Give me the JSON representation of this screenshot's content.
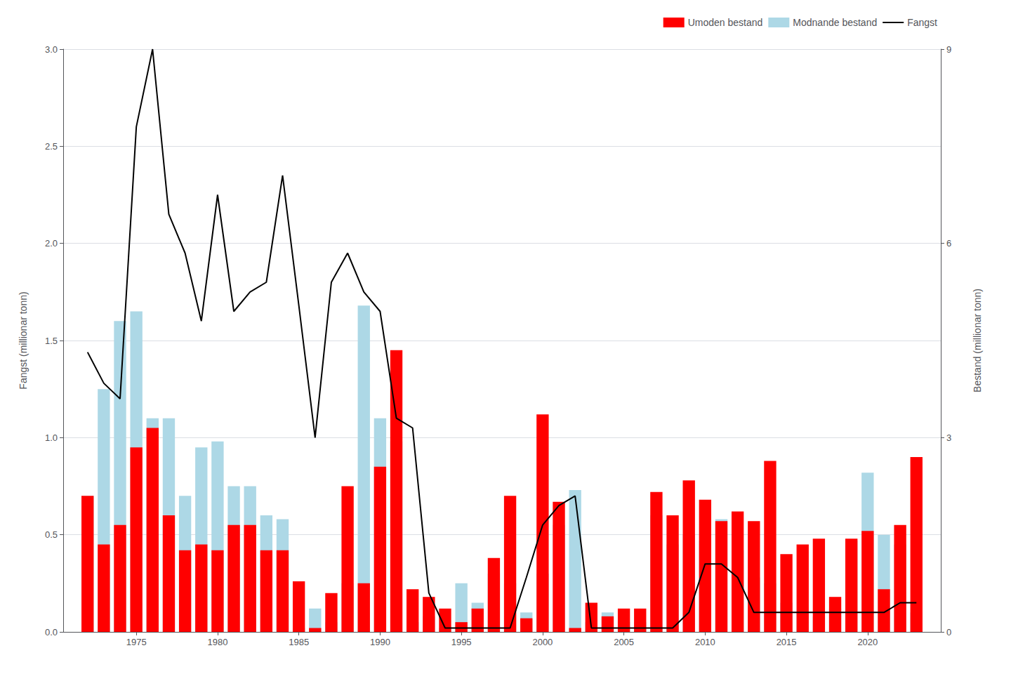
{
  "chart_data": {
    "type": "bar",
    "stacked": true,
    "grid": true,
    "legend": "upper right",
    "x": [
      1972,
      1973,
      1974,
      1975,
      1976,
      1977,
      1978,
      1979,
      1980,
      1981,
      1982,
      1983,
      1984,
      1985,
      1986,
      1987,
      1988,
      1989,
      1990,
      1991,
      1992,
      1993,
      1994,
      1995,
      1996,
      1997,
      1998,
      1999,
      2000,
      2001,
      2002,
      2003,
      2004,
      2005,
      2006,
      2007,
      2008,
      2009,
      2010,
      2011,
      2012,
      2013,
      2014,
      2015,
      2016,
      2017,
      2018,
      2019,
      2020,
      2021,
      2022,
      2023
    ],
    "series": [
      {
        "name": "Modnande bestand",
        "type": "bar",
        "color": "#add8e6",
        "values": [
          0.7,
          1.25,
          1.6,
          1.65,
          1.1,
          1.1,
          0.7,
          0.95,
          0.98,
          0.75,
          0.75,
          0.6,
          0.58,
          0.02,
          0.12,
          0.05,
          0.25,
          1.68,
          1.1,
          0.98,
          0.05,
          0.08,
          0.02,
          0.25,
          0.15,
          0.3,
          0.25,
          0.1,
          0.3,
          0.55,
          0.73,
          0.05,
          0.1,
          0.05,
          0.05,
          0.6,
          0.45,
          0.5,
          0.47,
          0.58,
          0.42,
          0.28,
          0.25,
          0.15,
          0.1,
          0.08,
          0.12,
          0.47,
          0.82,
          0.5,
          0.45,
          0.1
        ]
      },
      {
        "name": "Umoden bestand",
        "type": "bar",
        "color": "#ff0000",
        "values": [
          0.7,
          0.45,
          0.55,
          0.95,
          1.05,
          0.6,
          0.42,
          0.45,
          0.42,
          0.55,
          0.55,
          0.42,
          0.42,
          0.26,
          0.02,
          0.2,
          0.75,
          0.25,
          0.85,
          1.45,
          0.22,
          0.18,
          0.12,
          0.05,
          0.12,
          0.38,
          0.7,
          0.07,
          1.12,
          0.67,
          0.02,
          0.15,
          0.08,
          0.12,
          0.12,
          0.72,
          0.6,
          0.78,
          0.68,
          0.57,
          0.62,
          0.57,
          0.88,
          0.4,
          0.45,
          0.48,
          0.18,
          0.48,
          0.52,
          0.22,
          0.55,
          0.9
        ]
      },
      {
        "name": "Fangst",
        "type": "line",
        "color": "#000000",
        "values": [
          1.44,
          1.28,
          1.2,
          2.6,
          3.0,
          2.15,
          1.95,
          1.6,
          2.25,
          1.65,
          1.75,
          1.8,
          2.35,
          1.68,
          1.0,
          1.8,
          1.95,
          1.75,
          1.65,
          1.1,
          1.05,
          0.2,
          0.02,
          0.02,
          0.02,
          0.02,
          0.02,
          0.28,
          0.55,
          0.65,
          0.7,
          0.02,
          0.02,
          0.02,
          0.02,
          0.02,
          0.02,
          0.1,
          0.35,
          0.35,
          0.28,
          0.1,
          0.1,
          0.1,
          0.1,
          0.1,
          0.1,
          0.1,
          0.1,
          0.1,
          0.15,
          0.15
        ]
      }
    ],
    "legend_order": [
      "Umoden bestand",
      "Modnande bestand",
      "Fangst"
    ],
    "ylabel": "Fangst (millionar tonn)",
    "y2label": "Bestand (millionar tonn)",
    "xlim": [
      1970.5,
      2024.5
    ],
    "xticks": [
      1975,
      1980,
      1985,
      1990,
      1995,
      2000,
      2005,
      2010,
      2015,
      2020
    ],
    "ylim": [
      0.0,
      3.0
    ],
    "yticks": [
      {
        "value": 0,
        "label": "0.0"
      },
      0.5,
      {
        "value": 1,
        "label": "1.0"
      },
      1.5,
      {
        "value": 2,
        "label": "2.0"
      },
      2.5,
      {
        "value": 3,
        "label": "3.0"
      }
    ],
    "y2lim": [
      0,
      9
    ],
    "y2ticks": [
      0,
      3,
      6,
      9
    ]
  }
}
